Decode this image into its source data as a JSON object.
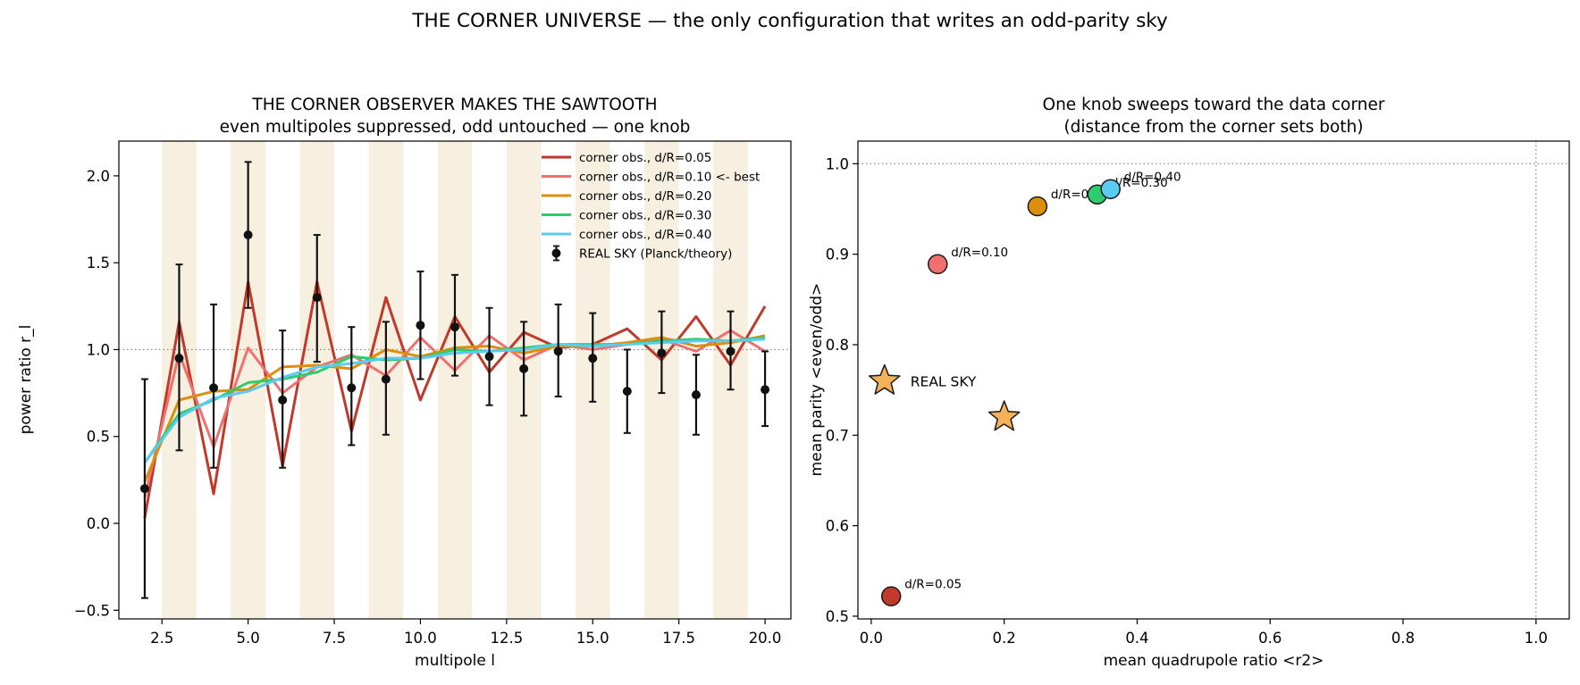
{
  "suptitle": "THE CORNER UNIVERSE — the only configuration that writes an odd-parity sky",
  "chart_data": [
    {
      "type": "line",
      "title": "THE CORNER OBSERVER MAKES THE SAWTOOTH",
      "subtitle": "even multipoles suppressed, odd untouched — one knob",
      "xlabel": "multipole  l",
      "ylabel": "power ratio  r_l",
      "xlim": [
        1.25,
        20.75
      ],
      "ylim": [
        -0.55,
        2.2
      ],
      "xticks": [
        2.5,
        5.0,
        7.5,
        10.0,
        12.5,
        15.0,
        17.5,
        20.0
      ],
      "xtick_labels": [
        "2.5",
        "5.0",
        "7.5",
        "10.0",
        "12.5",
        "15.0",
        "17.5",
        "20.0"
      ],
      "yticks": [
        -0.5,
        0.0,
        0.5,
        1.0,
        1.5,
        2.0
      ],
      "ytick_labels": [
        "−0.5",
        "0.0",
        "0.5",
        "1.0",
        "1.5",
        "2.0"
      ],
      "reference_line_y": 1.0,
      "shaded_bands_odd_l": [
        3,
        5,
        7,
        9,
        11,
        13,
        15,
        17,
        19
      ],
      "band_color": "#f7f0e0",
      "legend_position": "upper-right",
      "x": [
        2,
        3,
        4,
        5,
        6,
        7,
        8,
        9,
        10,
        11,
        12,
        13,
        14,
        15,
        16,
        17,
        18,
        19,
        20
      ],
      "series": [
        {
          "name": "corner obs., d/R=0.05",
          "color": "#c0392b",
          "values": [
            0.03,
            1.16,
            0.17,
            1.39,
            0.33,
            1.39,
            0.53,
            1.3,
            0.71,
            1.19,
            0.87,
            1.1,
            1.01,
            1.03,
            1.12,
            0.94,
            1.19,
            0.91,
            1.25
          ]
        },
        {
          "name": "corner obs., d/R=0.10  <- best",
          "color": "#f07070",
          "values": [
            0.15,
            0.98,
            0.44,
            1.01,
            0.75,
            0.9,
            0.97,
            0.85,
            1.07,
            0.88,
            1.08,
            0.94,
            1.03,
            1.0,
            1.03,
            1.06,
            0.99,
            1.11,
            0.99
          ]
        },
        {
          "name": "corner obs., d/R=0.20",
          "color": "#dd8e0c",
          "values": [
            0.24,
            0.71,
            0.76,
            0.77,
            0.9,
            0.91,
            0.89,
            1.0,
            0.96,
            1.01,
            1.02,
            0.98,
            1.02,
            1.02,
            1.04,
            1.07,
            1.02,
            1.04,
            1.08
          ]
        },
        {
          "name": "corner obs., d/R=0.30",
          "color": "#2ecc71",
          "values": [
            0.35,
            0.63,
            0.71,
            0.81,
            0.83,
            0.87,
            0.96,
            0.94,
            0.95,
            1.0,
            0.99,
            1.01,
            1.03,
            1.03,
            1.03,
            1.05,
            1.06,
            1.05,
            1.07
          ]
        },
        {
          "name": "corner obs., d/R=0.40",
          "color": "#5bcbf0",
          "values": [
            0.35,
            0.61,
            0.72,
            0.76,
            0.84,
            0.9,
            0.92,
            0.95,
            0.95,
            0.98,
            0.99,
            1.0,
            1.03,
            1.02,
            1.03,
            1.04,
            1.05,
            1.05,
            1.06
          ]
        }
      ],
      "observed": {
        "name": "REAL SKY (Planck/theory)",
        "color": "#111111",
        "values": [
          0.2,
          0.95,
          0.78,
          1.66,
          0.71,
          1.3,
          0.78,
          0.83,
          1.14,
          1.13,
          0.96,
          0.89,
          0.99,
          0.95,
          0.76,
          0.98,
          0.74,
          0.99,
          0.77
        ],
        "err_low": [
          -0.43,
          0.42,
          0.32,
          1.24,
          0.32,
          0.93,
          0.45,
          0.51,
          0.83,
          0.85,
          0.68,
          0.62,
          0.73,
          0.7,
          0.52,
          0.75,
          0.51,
          0.77,
          0.56
        ],
        "err_high": [
          0.83,
          1.49,
          1.26,
          2.08,
          1.11,
          1.66,
          1.13,
          1.16,
          1.45,
          1.43,
          1.24,
          1.16,
          1.26,
          1.21,
          1.0,
          1.22,
          0.97,
          1.22,
          0.99
        ]
      }
    },
    {
      "type": "scatter",
      "title": "One knob sweeps toward the data corner",
      "subtitle": "(distance from the corner sets both)",
      "xlabel": "mean quadrupole ratio  <r2>",
      "ylabel": "mean parity  <even/odd>",
      "xlim": [
        -0.02,
        1.05
      ],
      "ylim": [
        0.497,
        1.025
      ],
      "xticks": [
        0.0,
        0.2,
        0.4,
        0.6,
        0.8,
        1.0
      ],
      "xtick_labels": [
        "0.0",
        "0.2",
        "0.4",
        "0.6",
        "0.8",
        "1.0"
      ],
      "yticks": [
        0.5,
        0.6,
        0.7,
        0.8,
        0.9,
        1.0
      ],
      "ytick_labels": [
        "0.5",
        "0.6",
        "0.7",
        "0.8",
        "0.9",
        "1.0"
      ],
      "reference_line_x": 1.0,
      "reference_line_y": 1.0,
      "points": [
        {
          "label": "d/R=0.05",
          "x": 0.03,
          "y": 0.522,
          "color": "#c0392b"
        },
        {
          "label": "d/R=0.10",
          "x": 0.1,
          "y": 0.889,
          "color": "#f07070"
        },
        {
          "label": "d/R=0.20",
          "x": 0.25,
          "y": 0.953,
          "color": "#dd8e0c"
        },
        {
          "label": "d/R=0.30",
          "x": 0.34,
          "y": 0.966,
          "color": "#2ecc71"
        },
        {
          "label": "d/R=0.40",
          "x": 0.36,
          "y": 0.972,
          "color": "#5bcbf0"
        }
      ],
      "stars": [
        {
          "label": "REAL SKY",
          "x": 0.02,
          "y": 0.76,
          "color": "#f5b05a"
        },
        {
          "label": "",
          "x": 0.2,
          "y": 0.72,
          "color": "#f5b05a"
        }
      ]
    }
  ]
}
